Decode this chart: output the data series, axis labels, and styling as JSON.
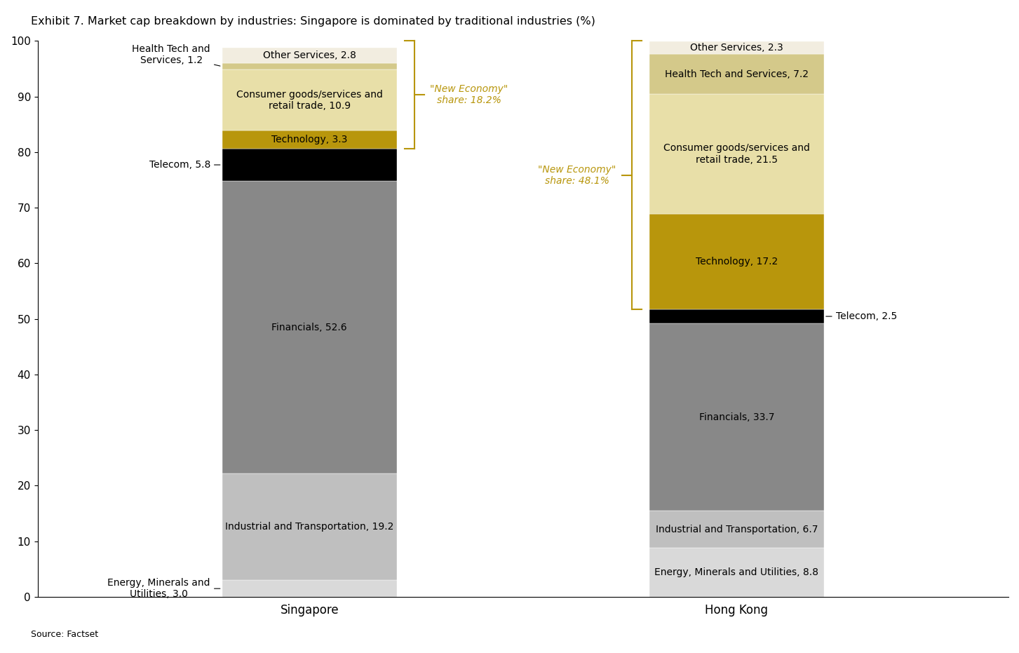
{
  "title": "Exhibit 7. Market cap breakdown by industries: Singapore is dominated by traditional industries (%)",
  "source": "Source: Factset",
  "categories": [
    "Singapore",
    "Hong Kong"
  ],
  "segments": [
    {
      "label": "Energy, Minerals and\nUtilities",
      "values": [
        3.0,
        8.8
      ],
      "color": "#d9d9d9"
    },
    {
      "label": "Industrial and Transportation",
      "values": [
        19.2,
        6.7
      ],
      "color": "#bfbfbf"
    },
    {
      "label": "Financials",
      "values": [
        52.6,
        33.7
      ],
      "color": "#888888"
    },
    {
      "label": "Telecom",
      "values": [
        5.8,
        2.5
      ],
      "color": "#000000"
    },
    {
      "label": "Technology",
      "values": [
        3.3,
        17.2
      ],
      "color": "#b8960c"
    },
    {
      "label": "Consumer goods/services and\nretail trade",
      "values": [
        10.9,
        21.5
      ],
      "color": "#e8dfa8"
    },
    {
      "label": "Health Tech and\nServices",
      "values": [
        1.2,
        7.2
      ],
      "color": "#d4c98a"
    },
    {
      "label": "Other Services",
      "values": [
        2.8,
        2.3
      ],
      "color": "#f2ede0"
    }
  ],
  "new_economy_sg_label": "\"New Economy\"\nshare: 18.2%",
  "new_economy_hk_label": "\"New Economy\"\nshare: 48.1%",
  "bracket_color": "#b8960c",
  "ylim": [
    0,
    100
  ],
  "yticks": [
    0,
    10,
    20,
    30,
    40,
    50,
    60,
    70,
    80,
    90,
    100
  ],
  "bar_width": 0.18,
  "label_fontsize": 10,
  "title_fontsize": 11.5,
  "axis_label_fontsize": 12,
  "tick_fontsize": 11
}
